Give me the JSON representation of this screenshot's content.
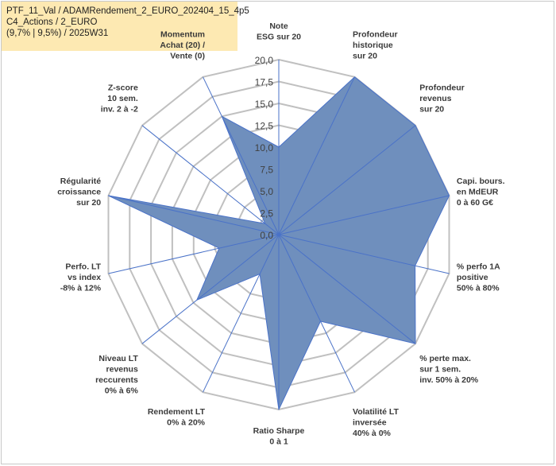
{
  "title_box": {
    "line1": "PTF_11_Val / ADAMRendement_2_EURO_202404_15_4p5",
    "line2": "C4_Actions / 2_EURO",
    "line3": "(9,7% | 9,5%) / 2025W31"
  },
  "chart_data": {
    "type": "radar",
    "rmax": 20,
    "ticks": [
      "0,0",
      "2,5",
      "5,0",
      "7,5",
      "10,0",
      "12,5",
      "15,0",
      "17,5",
      "20,0"
    ],
    "tick_values": [
      0,
      2.5,
      5,
      7.5,
      10,
      12.5,
      15,
      17.5,
      20
    ],
    "fill_color": "#6f8fbd",
    "line_color": "#4a72c8",
    "grid_color": "#c0c0c0",
    "categories": [
      [
        "Note",
        "ESG sur 20"
      ],
      [
        "Profondeur",
        "historique",
        "sur 20"
      ],
      [
        "Profondeur",
        "revenus",
        "sur 20"
      ],
      [
        "Capi. bours.",
        "en MdEUR",
        "0 à 60 G€"
      ],
      [
        "% perfo 1A",
        "positive",
        "50% à 80%"
      ],
      [
        "% perte max.",
        "sur 1 sem.",
        "inv. 50% à 20%"
      ],
      [
        "Volatilité LT",
        "inversée",
        "40% à 0%"
      ],
      [
        "Ratio Sharpe",
        "0 à 1"
      ],
      [
        "Rendement LT",
        "0% à 20%"
      ],
      [
        "Niveau LT",
        "revenus",
        "reccurents",
        "0% à 6%"
      ],
      [
        "Perfo. LT",
        "vs index",
        "-8% à 12%"
      ],
      [
        "Régularité",
        "croissance",
        "sur 20"
      ],
      [
        "Z-score",
        "10 sem.",
        "inv. 2 à -2"
      ],
      [
        "Momentum",
        "Achat (20) /",
        "Vente (0)"
      ]
    ],
    "values": [
      10,
      20,
      20,
      20,
      16,
      20,
      11,
      20,
      5,
      12,
      7,
      20,
      2,
      15
    ]
  }
}
